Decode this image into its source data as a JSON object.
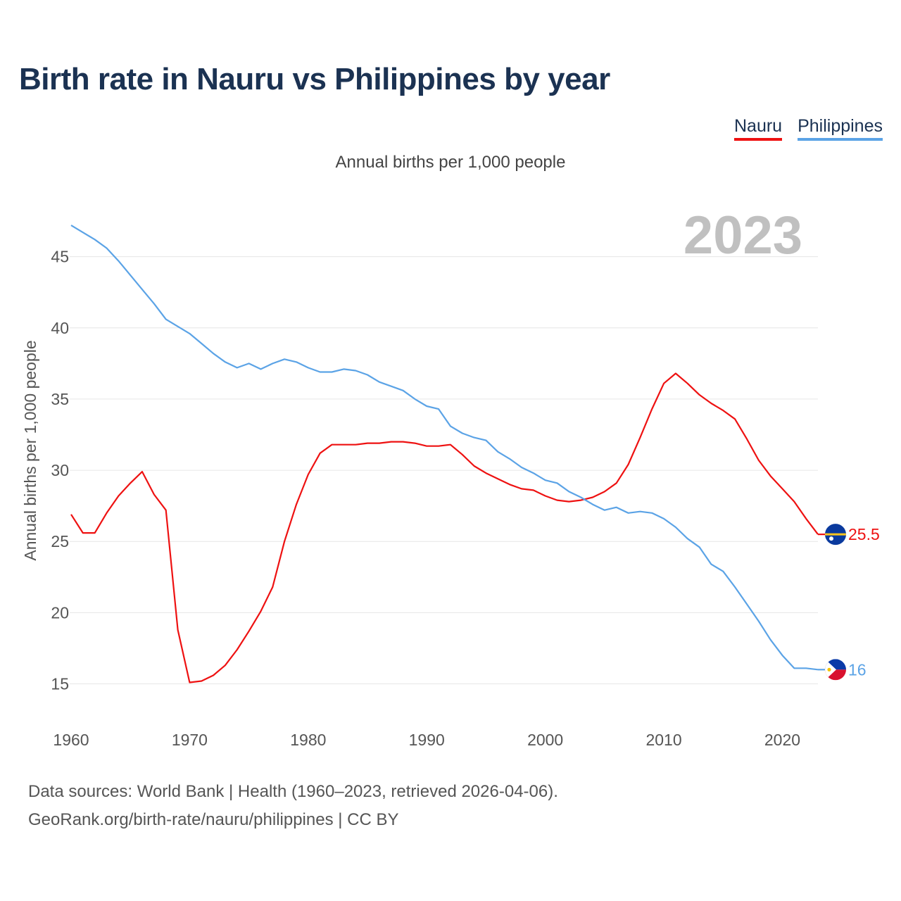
{
  "header": {
    "title": "Birth rate in Nauru vs Philippines by year",
    "subtitle": "Annual births per 1,000 people"
  },
  "legend": [
    {
      "label": "Nauru",
      "color": "#ee1111"
    },
    {
      "label": "Philippines",
      "color": "#5ba3e6"
    }
  ],
  "chart_data": {
    "type": "line",
    "title": "Birth rate in Nauru vs Philippines by year",
    "subtitle": "Annual births per 1,000 people",
    "xlabel": "",
    "ylabel": "Annual births per 1,000 people",
    "year_label": "2023",
    "xlim": [
      1960,
      2023
    ],
    "ylim": [
      13,
      47.7
    ],
    "xticks": [
      1960,
      1970,
      1980,
      1990,
      2000,
      2010,
      2020
    ],
    "yticks": [
      15,
      20,
      25,
      30,
      35,
      40,
      45
    ],
    "grid": true,
    "legend_position": "top-right",
    "x": [
      1960,
      1961,
      1962,
      1963,
      1964,
      1965,
      1966,
      1967,
      1968,
      1969,
      1970,
      1971,
      1972,
      1973,
      1974,
      1975,
      1976,
      1977,
      1978,
      1979,
      1980,
      1981,
      1982,
      1983,
      1984,
      1985,
      1986,
      1987,
      1988,
      1989,
      1990,
      1991,
      1992,
      1993,
      1994,
      1995,
      1996,
      1997,
      1998,
      1999,
      2000,
      2001,
      2002,
      2003,
      2004,
      2005,
      2006,
      2007,
      2008,
      2009,
      2010,
      2011,
      2012,
      2013,
      2014,
      2015,
      2016,
      2017,
      2018,
      2019,
      2020,
      2021,
      2022,
      2023
    ],
    "series": [
      {
        "name": "Nauru",
        "color": "#ee1111",
        "end_label": "25.5",
        "values": [
          26.9,
          25.6,
          25.6,
          27.0,
          28.2,
          29.1,
          29.9,
          28.3,
          27.2,
          18.8,
          15.1,
          15.2,
          15.6,
          16.3,
          17.4,
          18.7,
          20.1,
          21.8,
          25.0,
          27.6,
          29.7,
          31.2,
          31.8,
          31.8,
          31.8,
          31.9,
          31.9,
          32.0,
          32.0,
          31.9,
          31.7,
          31.7,
          31.8,
          31.1,
          30.3,
          29.8,
          29.4,
          29.0,
          28.7,
          28.6,
          28.2,
          27.9,
          27.8,
          27.9,
          28.1,
          28.5,
          29.1,
          30.4,
          32.3,
          34.3,
          36.1,
          36.8,
          36.1,
          35.3,
          34.7,
          34.2,
          33.6,
          32.2,
          30.7,
          29.6,
          28.7,
          27.8,
          26.6,
          25.5
        ]
      },
      {
        "name": "Philippines",
        "color": "#5ba3e6",
        "end_label": "16",
        "values": [
          47.2,
          46.7,
          46.2,
          45.6,
          44.7,
          43.7,
          42.7,
          41.7,
          40.6,
          40.1,
          39.6,
          38.9,
          38.2,
          37.6,
          37.2,
          37.5,
          37.1,
          37.5,
          37.8,
          37.6,
          37.2,
          36.9,
          36.9,
          37.1,
          37.0,
          36.7,
          36.2,
          35.9,
          35.6,
          35.0,
          34.5,
          34.3,
          33.1,
          32.6,
          32.3,
          32.1,
          31.3,
          30.8,
          30.2,
          29.8,
          29.3,
          29.1,
          28.5,
          28.1,
          27.6,
          27.2,
          27.4,
          27.0,
          27.1,
          27.0,
          26.6,
          26.0,
          25.2,
          24.6,
          23.4,
          22.9,
          21.8,
          20.6,
          19.4,
          18.1,
          17.0,
          16.1,
          16.1,
          16.0
        ]
      }
    ]
  },
  "footer": {
    "line1": "Data sources: World Bank | Health (1960–2023, retrieved 2026-04-06).",
    "line2": "GeoRank.org/birth-rate/nauru/philippines | CC BY"
  }
}
